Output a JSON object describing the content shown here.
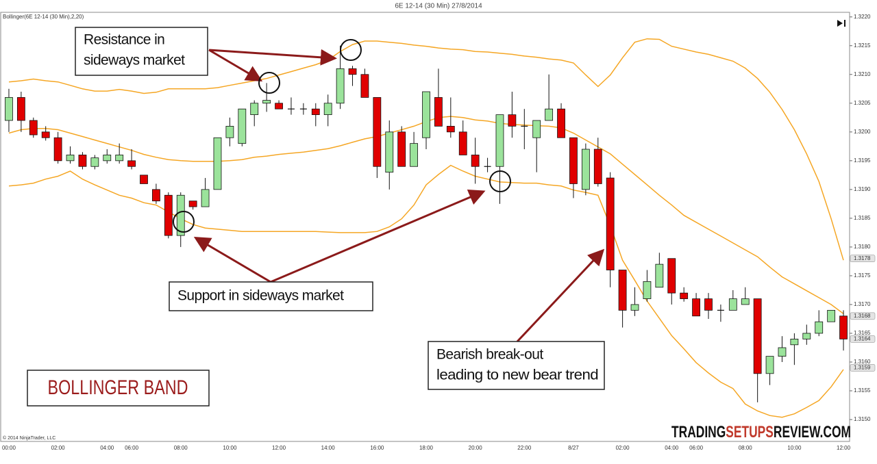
{
  "title": "6E 12-14 (30 Min)  27/8/2014",
  "indicator_label": "Bollinger(6E 12-14 (30 Min),2,20)",
  "copyright": "© 2014 NinjaTrader, LLC",
  "annotations": [
    {
      "lines": [
        "Resistance in",
        "sideways market"
      ]
    },
    {
      "lines": [
        "Support in sideways market"
      ]
    },
    {
      "lines": [
        "Bearish break-out",
        "leading to new bear trend"
      ]
    }
  ],
  "label": "BOLLINGER BAND",
  "brand": [
    "TRADING",
    "SETUPS",
    "REVIEW.COM"
  ],
  "chart_data": {
    "type": "candlestick",
    "categories": [
      "00:00",
      null,
      null,
      null,
      "02:00",
      null,
      null,
      null,
      "04:00",
      null,
      "06:00",
      null,
      null,
      null,
      "08:00",
      null,
      null,
      null,
      "10:00",
      null,
      null,
      null,
      "12:00",
      null,
      null,
      null,
      "14:00",
      null,
      null,
      null,
      "16:00",
      null,
      null,
      null,
      "18:00",
      null,
      null,
      null,
      "20:00",
      null,
      null,
      null,
      "22:00",
      null,
      null,
      null,
      "8/27",
      null,
      null,
      null,
      "02:00",
      null,
      null,
      null,
      "04:00",
      null,
      "06:00",
      null,
      null,
      null,
      "08:00",
      null,
      null,
      null,
      "10:00",
      null,
      null,
      null,
      "12:00"
    ],
    "open": [
      1.3202,
      1.3206,
      1.3202,
      1.32,
      1.3199,
      1.3195,
      1.3196,
      1.3194,
      1.3195,
      1.3195,
      1.3195,
      1.31925,
      1.319,
      1.3189,
      1.3182,
      1.3188,
      1.3187,
      1.319,
      1.3199,
      1.3198,
      1.3203,
      1.3205,
      1.3205,
      1.3204,
      1.3204,
      1.3204,
      1.3203,
      1.3205,
      1.3211,
      1.321,
      1.3206,
      1.3193,
      1.32,
      1.3194,
      1.3199,
      1.3206,
      1.3201,
      1.32,
      1.3196,
      1.3194,
      1.3194,
      1.3203,
      1.3201,
      1.3199,
      1.3202,
      1.3204,
      1.3199,
      1.319,
      1.3197,
      1.3192,
      1.3176,
      1.3169,
      1.3171,
      1.3173,
      1.3178,
      1.3172,
      1.3171,
      1.3171,
      1.3169,
      1.3169,
      1.317,
      1.3171,
      1.3158,
      1.3161,
      1.3163,
      1.3164,
      1.3165,
      1.3167,
      1.3168
    ],
    "high": [
      1.32075,
      1.3207,
      1.32025,
      1.3201,
      1.32,
      1.31975,
      1.31965,
      1.3196,
      1.3197,
      1.3198,
      1.3197,
      1.31925,
      1.3191,
      1.31895,
      1.31895,
      1.3188,
      1.3192,
      1.3199,
      1.32025,
      1.3204,
      1.32055,
      1.32085,
      1.32055,
      1.3206,
      1.3205,
      1.3205,
      1.32065,
      1.3215,
      1.32115,
      1.3211,
      1.3206,
      1.3202,
      1.3201,
      1.32,
      1.3207,
      1.3211,
      1.3206,
      1.3202,
      1.3199,
      1.31955,
      1.3203,
      1.3207,
      1.3204,
      1.3202,
      1.321,
      1.3205,
      1.3199,
      1.3198,
      1.3199,
      1.3193,
      1.3176,
      1.3173,
      1.3176,
      1.3179,
      1.3178,
      1.3173,
      1.3172,
      1.3172,
      1.317,
      1.31725,
      1.3173,
      1.3171,
      1.3161,
      1.31645,
      1.3165,
      1.31665,
      1.3169,
      1.3169,
      1.3169
    ],
    "low": [
      1.32,
      1.32,
      1.3199,
      1.31985,
      1.31945,
      1.31945,
      1.31935,
      1.31935,
      1.31945,
      1.31945,
      1.31935,
      1.3191,
      1.31875,
      1.31815,
      1.318,
      1.31865,
      1.3187,
      1.319,
      1.31975,
      1.31975,
      1.3201,
      1.32035,
      1.3204,
      1.3203,
      1.3203,
      1.3201,
      1.3201,
      1.3204,
      1.3208,
      1.3206,
      1.3192,
      1.319,
      1.3194,
      1.3194,
      1.3197,
      1.3201,
      1.3199,
      1.3196,
      1.3191,
      1.3193,
      1.31875,
      1.3199,
      1.3197,
      1.3193,
      1.3202,
      1.3199,
      1.31885,
      1.3189,
      1.31905,
      1.3173,
      1.3166,
      1.3168,
      1.31705,
      1.3173,
      1.317,
      1.31705,
      1.3168,
      1.31675,
      1.3167,
      1.3169,
      1.317,
      1.3153,
      1.3156,
      1.316,
      1.31595,
      1.3163,
      1.31645,
      1.3167,
      1.3162
    ],
    "close": [
      1.3206,
      1.3202,
      1.31995,
      1.3199,
      1.3195,
      1.3196,
      1.3194,
      1.31955,
      1.3196,
      1.3196,
      1.3194,
      1.3191,
      1.3188,
      1.3182,
      1.3189,
      1.3187,
      1.319,
      1.3199,
      1.3201,
      1.3204,
      1.3205,
      1.32055,
      1.3204,
      1.3204,
      1.3204,
      1.3203,
      1.3205,
      1.3211,
      1.321,
      1.3206,
      1.3194,
      1.32,
      1.3194,
      1.3198,
      1.3207,
      1.3201,
      1.32,
      1.3196,
      1.3194,
      1.3194,
      1.3203,
      1.3201,
      1.3201,
      1.3202,
      1.3204,
      1.3199,
      1.3191,
      1.3197,
      1.3191,
      1.3176,
      1.3169,
      1.317,
      1.3174,
      1.3177,
      1.3172,
      1.3171,
      1.3168,
      1.3169,
      1.3169,
      1.3171,
      1.3171,
      1.3158,
      1.3161,
      1.31625,
      1.3164,
      1.3165,
      1.3167,
      1.3169,
      1.3164
    ],
    "up_color": "#9be39b",
    "down_color": "#e00000",
    "bollinger": {
      "color": "#f5a623",
      "upper": [
        1.32087,
        1.32089,
        1.32092,
        1.32089,
        1.32087,
        1.32081,
        1.32075,
        1.32071,
        1.32071,
        1.32074,
        1.32071,
        1.32067,
        1.32069,
        1.32075,
        1.32075,
        1.32075,
        1.32075,
        1.32077,
        1.32081,
        1.32085,
        1.32089,
        1.32093,
        1.32099,
        1.32105,
        1.32111,
        1.32117,
        1.32125,
        1.3214,
        1.32152,
        1.32158,
        1.32158,
        1.32156,
        1.32154,
        1.32151,
        1.32149,
        1.32146,
        1.32144,
        1.32143,
        1.3214,
        1.32139,
        1.32137,
        1.32135,
        1.32132,
        1.3213,
        1.32127,
        1.32125,
        1.3212,
        1.32099,
        1.32079,
        1.32099,
        1.32129,
        1.32156,
        1.32162,
        1.32161,
        1.32149,
        1.32144,
        1.32139,
        1.32135,
        1.32129,
        1.32123,
        1.32111,
        1.32093,
        1.32069,
        1.32039,
        1.32004,
        1.31962,
        1.31914,
        1.31849,
        1.31777
      ],
      "middle": [
        1.31998,
        1.32004,
        1.32006,
        1.32006,
        1.32004,
        1.31998,
        1.31992,
        1.31986,
        1.3198,
        1.31974,
        1.31968,
        1.31961,
        1.31956,
        1.31952,
        1.3195,
        1.31949,
        1.31949,
        1.31949,
        1.3195,
        1.31952,
        1.31956,
        1.31958,
        1.31961,
        1.31963,
        1.31965,
        1.31968,
        1.31971,
        1.31976,
        1.31982,
        1.31988,
        1.31992,
        1.31998,
        1.32004,
        1.3201,
        1.32018,
        1.32025,
        1.32027,
        1.32025,
        1.32021,
        1.32019,
        1.32015,
        1.32013,
        1.32012,
        1.32011,
        1.3201,
        1.32007,
        1.31998,
        1.31986,
        1.31974,
        1.31962,
        1.31944,
        1.31926,
        1.31908,
        1.3189,
        1.31873,
        1.31855,
        1.31843,
        1.31831,
        1.31819,
        1.31807,
        1.31795,
        1.31783,
        1.31765,
        1.31748,
        1.31736,
        1.31724,
        1.31712,
        1.317,
        1.31684
      ],
      "lower": [
        1.31906,
        1.31908,
        1.31911,
        1.31918,
        1.31923,
        1.31932,
        1.31918,
        1.31908,
        1.31899,
        1.3189,
        1.31885,
        1.31877,
        1.31873,
        1.31861,
        1.31849,
        1.31839,
        1.31833,
        1.31831,
        1.31829,
        1.31827,
        1.31827,
        1.31827,
        1.31827,
        1.31827,
        1.31827,
        1.31827,
        1.31826,
        1.31825,
        1.31825,
        1.31825,
        1.31827,
        1.31835,
        1.31849,
        1.31873,
        1.31908,
        1.31926,
        1.31942,
        1.31932,
        1.31923,
        1.31918,
        1.31913,
        1.31912,
        1.31911,
        1.31911,
        1.31908,
        1.31906,
        1.31899,
        1.31895,
        1.3189,
        1.31837,
        1.31777,
        1.31742,
        1.31706,
        1.31676,
        1.31646,
        1.31623,
        1.31599,
        1.31581,
        1.31565,
        1.31554,
        1.31527,
        1.31515,
        1.31507,
        1.31504,
        1.3151,
        1.31521,
        1.31533,
        1.31557,
        1.31587
      ]
    },
    "price_markers": [
      1.3178,
      1.3168,
      1.3164,
      1.3159
    ],
    "ylim": [
      1.31462,
      1.32208
    ],
    "yticks": [
      {
        "value": 1.315,
        "label": "1.3150"
      },
      1.3155,
      {
        "value": 1.316,
        "label": "1.3160"
      },
      1.3165,
      {
        "value": 1.317,
        "label": "1.3170"
      },
      1.3175,
      {
        "value": 1.318,
        "label": "1.3180"
      },
      1.3185,
      {
        "value": 1.319,
        "label": "1.3190"
      },
      1.3195,
      {
        "value": 1.32,
        "label": "1.3200"
      },
      1.3205,
      {
        "value": 1.321,
        "label": "1.3210"
      },
      1.3215,
      {
        "value": 1.322,
        "label": "1.3220"
      }
    ],
    "grid": false
  }
}
